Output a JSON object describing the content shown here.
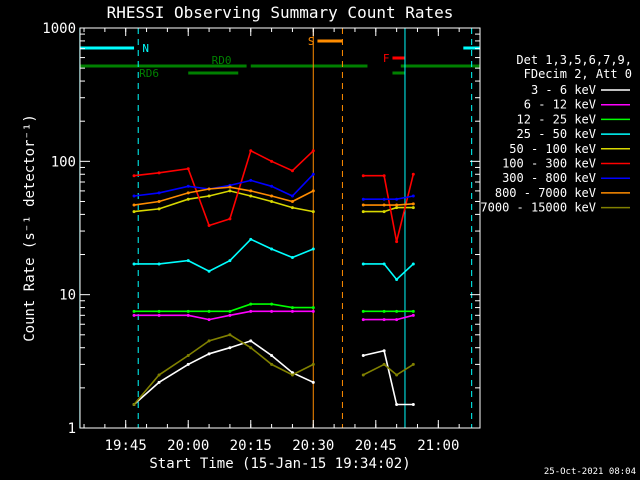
{
  "chart_data": {
    "type": "line",
    "title": "RHESSI Observing Summary Count Rates",
    "xlabel": "Start Time (15-Jan-15 19:34:02)",
    "ylabel": "Count Rate (s⁻¹ detector⁻¹)",
    "y_scale": "log",
    "ylim": [
      1,
      1000
    ],
    "xlim": [
      "19:34:02",
      "21:10:00"
    ],
    "x_ticks": [
      "19:45",
      "20:00",
      "20:15",
      "20:30",
      "20:45",
      "21:00"
    ],
    "y_ticks": [
      "1",
      "10",
      "100",
      "1000"
    ],
    "timestamp": "25-Oct-2021 08:04",
    "legend": {
      "placement": "right",
      "header": [
        "Det 1,3,5,6,7,9,",
        "FDecim 2, Att 0"
      ],
      "entries": [
        {
          "label": "3 - 6 keV",
          "color": "#ffffff"
        },
        {
          "label": "6 - 12 keV",
          "color": "#ff00ff"
        },
        {
          "label": "12 - 25 keV",
          "color": "#00ff00"
        },
        {
          "label": "25 - 50 keV",
          "color": "#00ffff"
        },
        {
          "label": "50 - 100 keV",
          "color": "#d8d800"
        },
        {
          "label": "100 - 300 keV",
          "color": "#ff0000"
        },
        {
          "label": "300 - 800 keV",
          "color": "#0000ff"
        },
        {
          "label": "800 - 7000 keV",
          "color": "#ff8c00"
        },
        {
          "label": "7000 - 15000 keV",
          "color": "#808000"
        }
      ]
    },
    "flag_bars": [
      {
        "label": "N",
        "color": "#00ffff",
        "segments": [
          [
            "19:34",
            "19:47"
          ],
          [
            "21:06",
            "21:10"
          ]
        ]
      },
      {
        "label": "RD0",
        "color": "#008000",
        "segments": [
          [
            "19:34",
            "20:14"
          ],
          [
            "20:15",
            "20:43"
          ],
          [
            "20:51",
            "21:10"
          ]
        ]
      },
      {
        "label": "RD6",
        "color": "#008000",
        "segments": [
          [
            "20:00",
            "20:12"
          ],
          [
            "20:49",
            "20:52"
          ]
        ]
      },
      {
        "label": "S",
        "color": "#ff8c00",
        "segments": [
          [
            "20:31",
            "20:37"
          ]
        ]
      },
      {
        "label": "F",
        "color": "#ff0000",
        "segments": [
          [
            "20:49",
            "20:52"
          ]
        ]
      }
    ],
    "event_lines": [
      {
        "time": "19:34",
        "color": "#00ffff",
        "style": "solid"
      },
      {
        "time": "19:48",
        "color": "#00ffff",
        "style": "dashed"
      },
      {
        "time": "20:30",
        "color": "#ff8c00",
        "style": "solid"
      },
      {
        "time": "20:37",
        "color": "#ff8c00",
        "style": "dashed"
      },
      {
        "time": "20:52",
        "color": "#00ffff",
        "style": "solid"
      },
      {
        "time": "21:08",
        "color": "#00ffff",
        "style": "dashed"
      }
    ],
    "series": [
      {
        "name": "3 - 6 keV",
        "color": "#ffffff",
        "points": [
          [
            "19:47",
            1.5
          ],
          [
            "19:53",
            2.2
          ],
          [
            "20:00",
            3.0
          ],
          [
            "20:05",
            3.6
          ],
          [
            "20:10",
            4.0
          ],
          [
            "20:15",
            4.5
          ],
          [
            "20:20",
            3.5
          ],
          [
            "20:25",
            2.6
          ],
          [
            "20:30",
            2.2
          ],
          [
            "20:42",
            3.5
          ],
          [
            "20:47",
            3.8
          ],
          [
            "20:50",
            1.5
          ],
          [
            "20:54",
            1.5
          ]
        ]
      },
      {
        "name": "6 - 12 keV",
        "color": "#ff00ff",
        "points": [
          [
            "19:47",
            7.0
          ],
          [
            "19:53",
            7.0
          ],
          [
            "20:00",
            7.0
          ],
          [
            "20:05",
            6.5
          ],
          [
            "20:10",
            7.0
          ],
          [
            "20:15",
            7.5
          ],
          [
            "20:20",
            7.5
          ],
          [
            "20:25",
            7.5
          ],
          [
            "20:30",
            7.5
          ],
          [
            "20:42",
            6.5
          ],
          [
            "20:47",
            6.5
          ],
          [
            "20:50",
            6.5
          ],
          [
            "20:54",
            7.0
          ]
        ]
      },
      {
        "name": "12 - 25 keV",
        "color": "#00ff00",
        "points": [
          [
            "19:47",
            7.5
          ],
          [
            "19:53",
            7.5
          ],
          [
            "20:00",
            7.5
          ],
          [
            "20:05",
            7.5
          ],
          [
            "20:10",
            7.5
          ],
          [
            "20:15",
            8.5
          ],
          [
            "20:20",
            8.5
          ],
          [
            "20:25",
            8.0
          ],
          [
            "20:30",
            8.0
          ],
          [
            "20:42",
            7.5
          ],
          [
            "20:47",
            7.5
          ],
          [
            "20:50",
            7.5
          ],
          [
            "20:54",
            7.5
          ]
        ]
      },
      {
        "name": "25 - 50 keV",
        "color": "#00ffff",
        "points": [
          [
            "19:47",
            17.0
          ],
          [
            "19:53",
            17.0
          ],
          [
            "20:00",
            18.0
          ],
          [
            "20:05",
            15.0
          ],
          [
            "20:10",
            18.0
          ],
          [
            "20:15",
            26.0
          ],
          [
            "20:20",
            22.0
          ],
          [
            "20:25",
            19.0
          ],
          [
            "20:30",
            22.0
          ],
          [
            "20:42",
            17.0
          ],
          [
            "20:47",
            17.0
          ],
          [
            "20:50",
            13.0
          ],
          [
            "20:54",
            17.0
          ]
        ]
      },
      {
        "name": "50 - 100 keV",
        "color": "#d8d800",
        "points": [
          [
            "19:47",
            42.0
          ],
          [
            "19:53",
            44.0
          ],
          [
            "20:00",
            52.0
          ],
          [
            "20:05",
            55.0
          ],
          [
            "20:10",
            60.0
          ],
          [
            "20:15",
            55.0
          ],
          [
            "20:20",
            50.0
          ],
          [
            "20:25",
            45.0
          ],
          [
            "20:30",
            42.0
          ],
          [
            "20:42",
            42.0
          ],
          [
            "20:47",
            42.0
          ],
          [
            "20:50",
            45.0
          ],
          [
            "20:54",
            45.0
          ]
        ]
      },
      {
        "name": "100 - 300 keV",
        "color": "#ff0000",
        "points": [
          [
            "19:47",
            78.0
          ],
          [
            "19:53",
            82.0
          ],
          [
            "20:00",
            88.0
          ],
          [
            "20:05",
            33.0
          ],
          [
            "20:10",
            37.0
          ],
          [
            "20:15",
            120.0
          ],
          [
            "20:20",
            100.0
          ],
          [
            "20:25",
            85.0
          ],
          [
            "20:30",
            120.0
          ],
          [
            "20:42",
            78.0
          ],
          [
            "20:47",
            78.0
          ],
          [
            "20:50",
            25.0
          ],
          [
            "20:54",
            80.0
          ]
        ]
      },
      {
        "name": "300 - 800 keV",
        "color": "#0000ff",
        "points": [
          [
            "19:47",
            55.0
          ],
          [
            "19:53",
            58.0
          ],
          [
            "20:00",
            65.0
          ],
          [
            "20:05",
            62.0
          ],
          [
            "20:10",
            66.0
          ],
          [
            "20:15",
            72.0
          ],
          [
            "20:20",
            65.0
          ],
          [
            "20:25",
            55.0
          ],
          [
            "20:30",
            80.0
          ],
          [
            "20:42",
            52.0
          ],
          [
            "20:47",
            52.0
          ],
          [
            "20:50",
            52.0
          ],
          [
            "20:54",
            55.0
          ]
        ]
      },
      {
        "name": "800 - 7000 keV",
        "color": "#ff8c00",
        "points": [
          [
            "19:47",
            47.0
          ],
          [
            "19:53",
            50.0
          ],
          [
            "20:00",
            58.0
          ],
          [
            "20:05",
            62.0
          ],
          [
            "20:10",
            64.0
          ],
          [
            "20:15",
            60.0
          ],
          [
            "20:20",
            55.0
          ],
          [
            "20:25",
            50.0
          ],
          [
            "20:30",
            60.0
          ],
          [
            "20:42",
            47.0
          ],
          [
            "20:47",
            47.0
          ],
          [
            "20:50",
            47.0
          ],
          [
            "20:54",
            48.0
          ]
        ]
      },
      {
        "name": "7000 - 15000 keV",
        "color": "#808000",
        "points": [
          [
            "19:47",
            1.5
          ],
          [
            "19:53",
            2.5
          ],
          [
            "20:00",
            3.5
          ],
          [
            "20:05",
            4.5
          ],
          [
            "20:10",
            5.0
          ],
          [
            "20:15",
            4.0
          ],
          [
            "20:20",
            3.0
          ],
          [
            "20:25",
            2.5
          ],
          [
            "20:30",
            3.0
          ],
          [
            "20:42",
            2.5
          ],
          [
            "20:47",
            3.0
          ],
          [
            "20:50",
            2.5
          ],
          [
            "20:54",
            3.0
          ]
        ]
      }
    ]
  }
}
